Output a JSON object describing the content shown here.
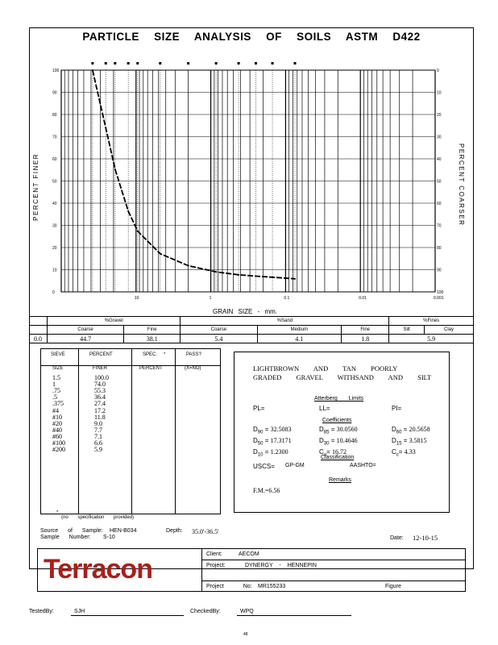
{
  "title": "PARTICLE SIZE ANALYSIS OF SOILS ASTM D422",
  "y_left_label": "PERCENT FINER",
  "y_right_label": "PERCENT COARSER",
  "x_label": "GRAIN SIZE - mm.",
  "chart_data": {
    "type": "line",
    "x_scale": "log",
    "x_range": [
      100,
      0.001
    ],
    "x_ticks": [
      "10",
      "1",
      "0.1",
      "0.01",
      "0.001"
    ],
    "y_left_ticks": [
      "100",
      "90",
      "80",
      "70",
      "60",
      "50",
      "40",
      "30",
      "20",
      "10",
      "0"
    ],
    "y_right_ticks": [
      "0",
      "10",
      "20",
      "30",
      "40",
      "50",
      "60",
      "70",
      "80",
      "90",
      "100"
    ],
    "x": [
      38.1,
      25.4,
      19.05,
      12.7,
      9.525,
      4.75,
      2.0,
      0.85,
      0.425,
      0.25,
      0.15,
      0.075
    ],
    "y": [
      100.0,
      74.0,
      55.3,
      36.4,
      27.4,
      17.2,
      11.8,
      9.0,
      7.7,
      7.1,
      6.6,
      5.9
    ]
  },
  "breakdown": {
    "top_headers": [
      "%Gravel",
      "%Sand",
      "%Fines"
    ],
    "sub_headers": [
      "Coarse",
      "Fine",
      "Coarse",
      "Medium",
      "Fine",
      "Silt",
      "Clay"
    ],
    "first_value": "0.0",
    "values": [
      "44.7",
      "38.1",
      "5.4",
      "4.1",
      "1.8",
      "5.9"
    ]
  },
  "sieve_table": {
    "headers_row1": [
      "SIEVE",
      "PERCENT",
      "SPEC.",
      "*",
      "PASS?"
    ],
    "headers_row2": [
      "SIZE",
      "FINER",
      "PERCENT",
      "(X=NO)"
    ],
    "sizes": [
      "1.5",
      "1",
      ".75",
      ".5",
      ".375",
      "#4",
      "#10",
      "#20",
      "#40",
      "#60",
      "#100",
      "#200"
    ],
    "finer": [
      "100.0",
      "74.0",
      "55.3",
      "36.4",
      "27.4",
      "17.2",
      "11.8",
      "9.0",
      "7.7",
      "7.1",
      "6.6",
      "5.9"
    ],
    "footnote_star": "*",
    "footnote": "(no specification provided)"
  },
  "description": "LIGHTBROWN AND TAN POORLY GRADED GRAVEL WITHSAND AND SILT",
  "atterberg": {
    "heading": "Atterberg Limits",
    "pl": "PL=",
    "ll": "LL=",
    "pi": "PI="
  },
  "coefficients": {
    "heading": "Coefficients",
    "d90": "32.5083",
    "d85": "30.0560",
    "d60": "20.5658",
    "d50": "17.3171",
    "d30": "10.4646",
    "d15": "3.5815",
    "d10": "1.2300",
    "cu": "16.72",
    "cc": "4.33"
  },
  "classification": {
    "heading": "Classification",
    "uscs_label": "USCS=",
    "uscs": "GP-GM",
    "aashto_label": "AASHTO="
  },
  "remarks": {
    "heading": "Remarks",
    "fm": "F.M.=6.56"
  },
  "source": {
    "source_label": "Source of Sample:",
    "source": "HEN-B034",
    "depth_label": "Depth:",
    "depth": "35.0'-36.5'",
    "sample_label": "Sample Number:",
    "sample": "S-10",
    "date_label": "Date:",
    "date": "12-10-15"
  },
  "company": {
    "logo": "Terracon",
    "logo_color": "#a8201a"
  },
  "project_info": {
    "client_label": "Client:",
    "client": "AECOM",
    "project_label": "Project:",
    "project": "DYNERGY - HENNEPIN",
    "project_no_label": "Project No:",
    "project_no": "MR155233",
    "figure_label": "Figure"
  },
  "signoff": {
    "tested_label": "TestedBy:",
    "tested": "SJH",
    "checked_label": "CheckedBy:",
    "checked": "WPQ"
  },
  "page_number": "48"
}
